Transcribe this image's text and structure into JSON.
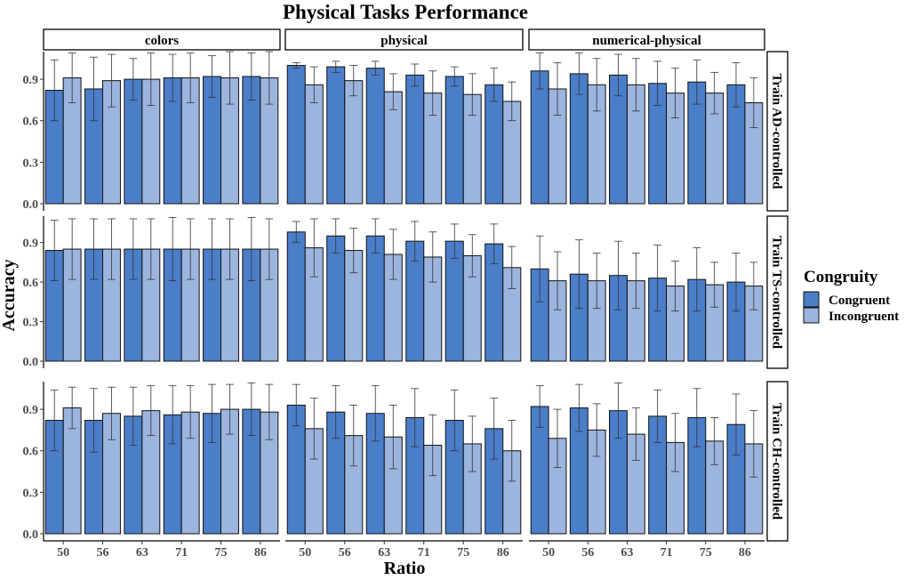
{
  "chart_data": {
    "type": "bar",
    "title": "Physical Tasks Performance",
    "xlabel": "Ratio",
    "ylabel": "Accuracy",
    "ylim": [
      0,
      1.1
    ],
    "yticks": [
      "0.0",
      "0.3",
      "0.6",
      "0.9"
    ],
    "categories": [
      "50",
      "56",
      "63",
      "71",
      "75",
      "86"
    ],
    "columns": [
      "colors",
      "physical",
      "numerical-physical"
    ],
    "rows": [
      "Train AD-controlled",
      "Train TS-controlled",
      "Train CH-controlled"
    ],
    "legend": {
      "title": "Congruity",
      "position": "right",
      "entries": [
        {
          "name": "Congruent",
          "color": "#4a7ec9"
        },
        {
          "name": "Incongruent",
          "color": "#9bb5de"
        }
      ]
    },
    "grid": false,
    "panels": [
      {
        "row": "Train AD-controlled",
        "column": "colors",
        "congruent": [
          0.82,
          0.83,
          0.9,
          0.91,
          0.92,
          0.92
        ],
        "congruent_err": [
          0.22,
          0.23,
          0.15,
          0.17,
          0.15,
          0.17
        ],
        "incongruent": [
          0.91,
          0.89,
          0.9,
          0.91,
          0.91,
          0.91
        ],
        "incongruent_err": [
          0.18,
          0.19,
          0.19,
          0.18,
          0.19,
          0.19
        ]
      },
      {
        "row": "Train AD-controlled",
        "column": "physical",
        "congruent": [
          1.0,
          0.99,
          0.98,
          0.93,
          0.92,
          0.86
        ],
        "congruent_err": [
          0.02,
          0.04,
          0.05,
          0.08,
          0.07,
          0.12
        ],
        "incongruent": [
          0.86,
          0.89,
          0.81,
          0.8,
          0.79,
          0.74
        ],
        "incongruent_err": [
          0.13,
          0.11,
          0.13,
          0.16,
          0.15,
          0.14
        ]
      },
      {
        "row": "Train AD-controlled",
        "column": "numerical-physical",
        "congruent": [
          0.96,
          0.94,
          0.93,
          0.87,
          0.88,
          0.86
        ],
        "congruent_err": [
          0.13,
          0.15,
          0.15,
          0.16,
          0.16,
          0.16
        ],
        "incongruent": [
          0.83,
          0.86,
          0.86,
          0.8,
          0.8,
          0.73
        ],
        "incongruent_err": [
          0.19,
          0.19,
          0.19,
          0.18,
          0.15,
          0.18
        ]
      },
      {
        "row": "Train TS-controlled",
        "column": "colors",
        "congruent": [
          0.84,
          0.85,
          0.85,
          0.85,
          0.85,
          0.85
        ],
        "congruent_err": [
          0.23,
          0.23,
          0.23,
          0.24,
          0.23,
          0.24
        ],
        "incongruent": [
          0.85,
          0.85,
          0.85,
          0.85,
          0.85,
          0.85
        ],
        "incongruent_err": [
          0.23,
          0.23,
          0.23,
          0.23,
          0.23,
          0.23
        ]
      },
      {
        "row": "Train TS-controlled",
        "column": "physical",
        "congruent": [
          0.98,
          0.95,
          0.95,
          0.91,
          0.91,
          0.89
        ],
        "congruent_err": [
          0.08,
          0.13,
          0.13,
          0.15,
          0.13,
          0.15
        ],
        "incongruent": [
          0.86,
          0.84,
          0.81,
          0.79,
          0.8,
          0.71
        ],
        "incongruent_err": [
          0.22,
          0.17,
          0.19,
          0.19,
          0.16,
          0.16
        ]
      },
      {
        "row": "Train TS-controlled",
        "column": "numerical-physical",
        "congruent": [
          0.7,
          0.66,
          0.65,
          0.63,
          0.62,
          0.6
        ],
        "congruent_err": [
          0.25,
          0.26,
          0.26,
          0.25,
          0.24,
          0.22
        ],
        "incongruent": [
          0.61,
          0.61,
          0.61,
          0.57,
          0.58,
          0.57
        ],
        "incongruent_err": [
          0.22,
          0.21,
          0.21,
          0.19,
          0.17,
          0.18
        ]
      },
      {
        "row": "Train CH-controlled",
        "column": "colors",
        "congruent": [
          0.82,
          0.82,
          0.85,
          0.86,
          0.87,
          0.9
        ],
        "congruent_err": [
          0.22,
          0.23,
          0.21,
          0.21,
          0.21,
          0.19
        ],
        "incongruent": [
          0.91,
          0.87,
          0.89,
          0.88,
          0.9,
          0.88
        ],
        "incongruent_err": [
          0.15,
          0.19,
          0.18,
          0.19,
          0.18,
          0.2
        ]
      },
      {
        "row": "Train CH-controlled",
        "column": "physical",
        "congruent": [
          0.93,
          0.88,
          0.87,
          0.84,
          0.82,
          0.76
        ],
        "congruent_err": [
          0.15,
          0.19,
          0.2,
          0.21,
          0.22,
          0.22
        ],
        "incongruent": [
          0.76,
          0.71,
          0.7,
          0.64,
          0.65,
          0.6
        ],
        "incongruent_err": [
          0.22,
          0.22,
          0.23,
          0.22,
          0.2,
          0.22
        ]
      },
      {
        "row": "Train CH-controlled",
        "column": "numerical-physical",
        "congruent": [
          0.92,
          0.91,
          0.89,
          0.85,
          0.84,
          0.79
        ],
        "congruent_err": [
          0.15,
          0.17,
          0.2,
          0.19,
          0.21,
          0.22
        ],
        "incongruent": [
          0.69,
          0.75,
          0.72,
          0.66,
          0.67,
          0.65
        ],
        "incongruent_err": [
          0.21,
          0.19,
          0.19,
          0.21,
          0.17,
          0.24
        ]
      }
    ]
  }
}
